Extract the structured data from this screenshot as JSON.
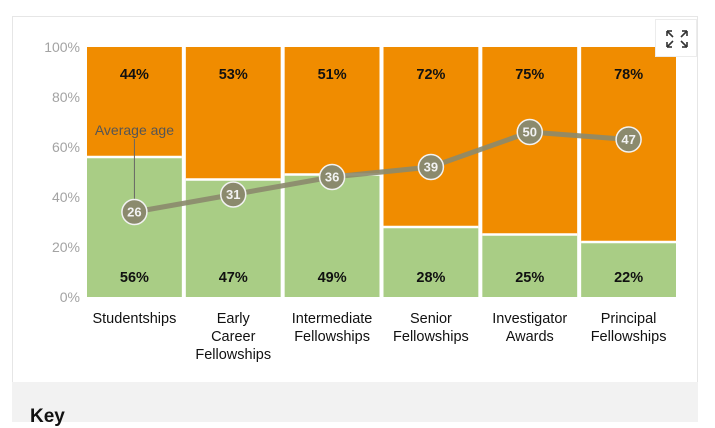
{
  "colors": {
    "upper": "#f08c00",
    "lower": "#a9cd85",
    "age_line": "#8b8a6d",
    "age_dot": "#8b8a6d",
    "tick": "#a3a3a3"
  },
  "expand_icon": "expand-arrows-icon",
  "key": {
    "title": "Key"
  },
  "chart_data": {
    "type": "bar",
    "stacked": true,
    "categories": [
      [
        "Studentships"
      ],
      [
        "Early",
        "Career",
        "Fellowships"
      ],
      [
        "Intermediate",
        "Fellowships"
      ],
      [
        "Senior",
        "Fellowships"
      ],
      [
        "Investigator",
        "Awards"
      ],
      [
        "Principal",
        "Fellowships"
      ]
    ],
    "series": [
      {
        "values": [
          56,
          47,
          49,
          28,
          25,
          22
        ]
      },
      {
        "values": [
          44,
          53,
          51,
          72,
          75,
          78
        ]
      }
    ],
    "value_labels": {
      "lower": [
        "56%",
        "47%",
        "49%",
        "28%",
        "25%",
        "22%"
      ],
      "upper": [
        "44%",
        "53%",
        "51%",
        "72%",
        "75%",
        "78%"
      ]
    },
    "line": {
      "name": "Average age",
      "values": [
        26,
        31,
        36,
        39,
        50,
        47
      ],
      "y_percent": [
        34,
        41,
        48,
        52,
        66,
        63
      ]
    },
    "yticks": [
      "0%",
      "20%",
      "40%",
      "60%",
      "80%",
      "100%"
    ],
    "ylim": [
      0,
      100
    ]
  }
}
